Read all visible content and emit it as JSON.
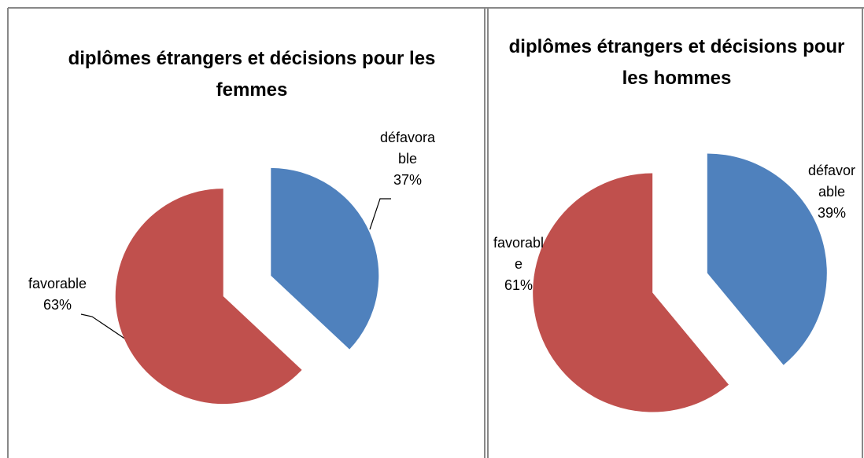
{
  "chart_data": [
    {
      "type": "pie",
      "title": "diplômes étrangers et décisions pour les femmes",
      "categories": [
        "défavorable",
        "favorable"
      ],
      "values": [
        37,
        63
      ],
      "value_labels": [
        "37%",
        "63%"
      ],
      "colors": [
        "#4f81bd",
        "#c0504d"
      ],
      "exploded": true
    },
    {
      "type": "pie",
      "title": "diplômes étrangers et décisions pour les hommes",
      "categories": [
        "défavorable",
        "favorable"
      ],
      "values": [
        39,
        61
      ],
      "value_labels": [
        "39%",
        "61%"
      ],
      "colors": [
        "#4f81bd",
        "#c0504d"
      ],
      "exploded": true
    }
  ]
}
